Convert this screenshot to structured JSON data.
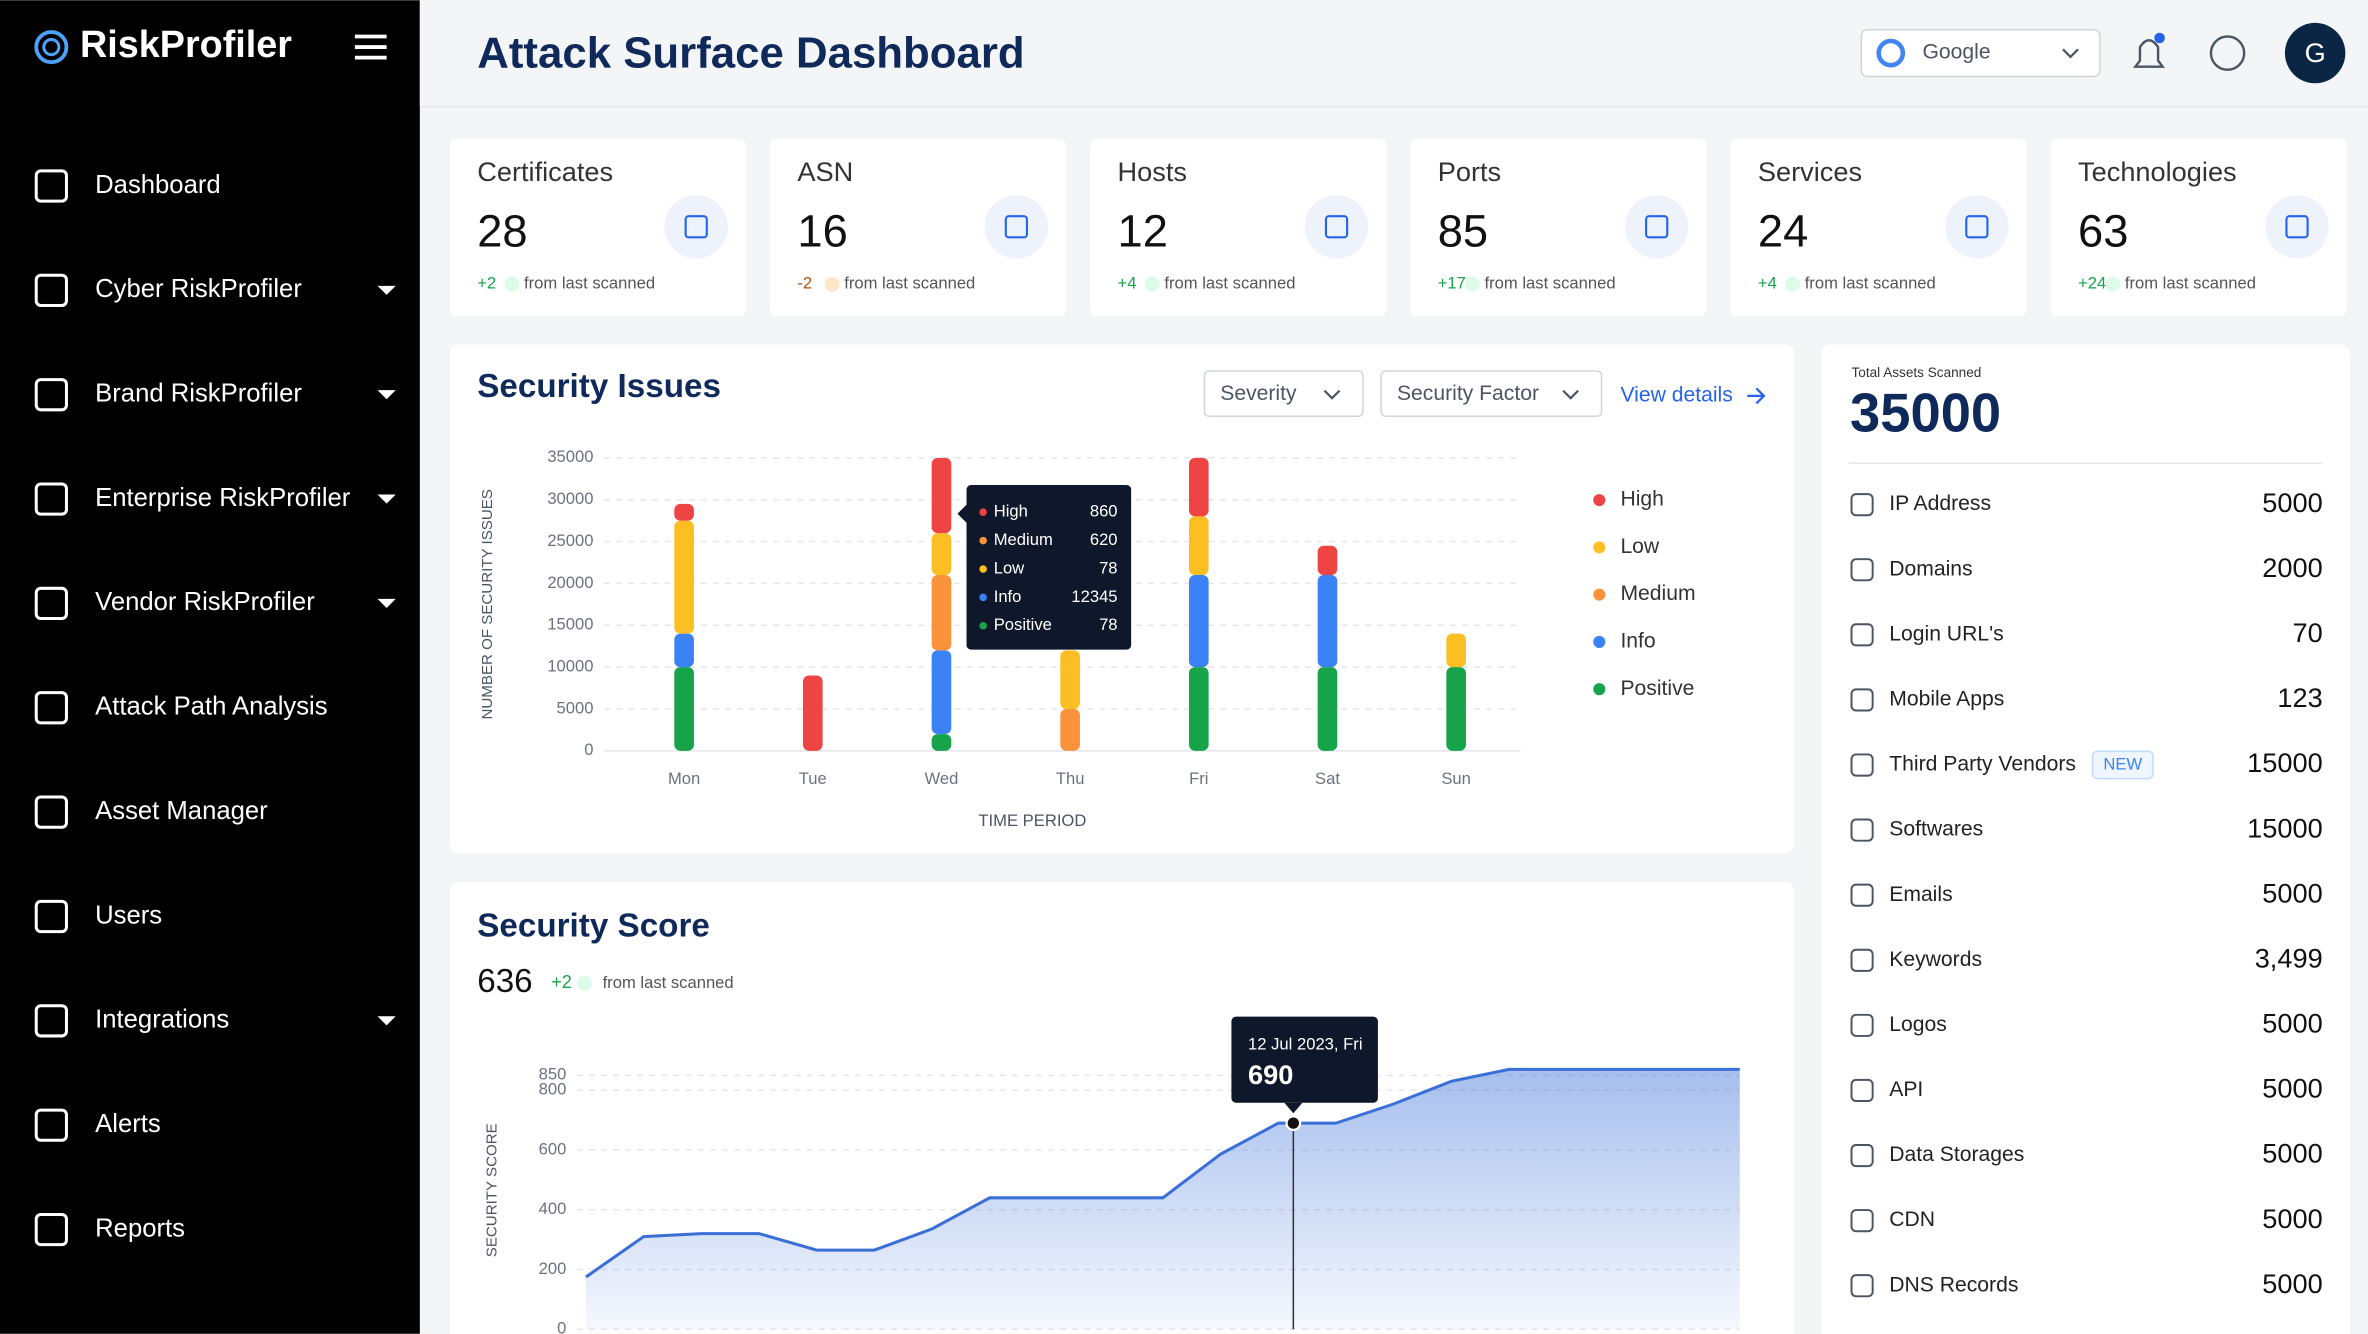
{
  "sidebar": {
    "brand": "RiskProfiler",
    "nav": [
      {
        "label": "Dashboard",
        "has_submenu": false
      },
      {
        "label": "Cyber RiskProfiler",
        "has_submenu": true
      },
      {
        "label": "Brand RiskProfiler",
        "has_submenu": true
      },
      {
        "label": "Enterprise RiskProfiler",
        "has_submenu": true
      },
      {
        "label": "Vendor RiskProfiler",
        "has_submenu": true
      },
      {
        "label": "Attack Path Analysis",
        "has_submenu": false
      },
      {
        "label": "Asset Manager",
        "has_submenu": false
      },
      {
        "label": "Users",
        "has_submenu": false
      },
      {
        "label": "Integrations",
        "has_submenu": true
      },
      {
        "label": "Alerts",
        "has_submenu": false
      },
      {
        "label": "Reports",
        "has_submenu": false
      }
    ]
  },
  "header": {
    "title": "Attack Surface Dashboard",
    "organization": "Google",
    "avatar": "G"
  },
  "stat_cards": [
    {
      "title": "Certificates",
      "value": 28,
      "change": "+2",
      "note": "from last scanned"
    },
    {
      "title": "ASN",
      "value": 16,
      "change": "-2",
      "note": "from last scanned"
    },
    {
      "title": "Hosts",
      "value": 12,
      "change": "+4",
      "note": "from last scanned"
    },
    {
      "title": "Ports",
      "value": 85,
      "change": "+17",
      "note": "from last scanned"
    },
    {
      "title": "Services",
      "value": 24,
      "change": "+4",
      "note": "from last scanned"
    },
    {
      "title": "Technologies",
      "value": 63,
      "change": "+24",
      "note": "from last scanned"
    }
  ],
  "security_issues": {
    "title": "Security Issues",
    "filters": [
      "Severity",
      "Security Factor"
    ],
    "link": "View details",
    "chart_data": {
      "type": "stacked_bar",
      "y_label": "NUMBER OF SECURITY ISSUES",
      "x_label": "TIME PERIOD",
      "categories": [
        "Mon",
        "Tue",
        "Wed",
        "Thu",
        "Fri",
        "Sat",
        "Sun"
      ],
      "series": [
        {
          "name": "High",
          "color": "#ef4444",
          "values": [
            2000,
            9000,
            9000,
            0,
            7000,
            3500,
            0
          ]
        },
        {
          "name": "Low",
          "color": "#fbbf24",
          "values": [
            13500,
            0,
            5000,
            7000,
            7000,
            0,
            4000
          ]
        },
        {
          "name": "Medium",
          "color": "#fb923c",
          "values": [
            0,
            0,
            9000,
            5000,
            0,
            0,
            0
          ]
        },
        {
          "name": "Info",
          "color": "#3b82f6",
          "values": [
            4000,
            0,
            10000,
            0,
            11000,
            11000,
            0
          ]
        },
        {
          "name": "Positive",
          "color": "#16a34a",
          "values": [
            10000,
            0,
            2000,
            0,
            10000,
            10000,
            10000
          ]
        }
      ],
      "ylim": [
        0,
        35000
      ],
      "yticks": [
        0,
        5000,
        10000,
        15000,
        20000,
        25000,
        30000,
        35000
      ],
      "grid": true,
      "legend": "right"
    },
    "tooltip": {
      "rows": [
        {
          "name": "High",
          "value": 860
        },
        {
          "name": "Medium",
          "value": 620
        },
        {
          "name": "Low",
          "value": 78
        },
        {
          "name": "Info",
          "value": 12345
        },
        {
          "name": "Positive",
          "value": 78
        }
      ]
    }
  },
  "security_score": {
    "title": "Security Score",
    "score": 636,
    "change": "+2",
    "note": "from last scanned",
    "chart_data": {
      "type": "area",
      "y_label": "SECURITY SCORE",
      "values": [
        175,
        310,
        320,
        320,
        265,
        265,
        336,
        440,
        440,
        440,
        440,
        586,
        690,
        690,
        754,
        830,
        870,
        870,
        870,
        870,
        870
      ],
      "ylim": [
        0,
        900
      ],
      "yticks": [
        0,
        200,
        400,
        600,
        800,
        850
      ],
      "color": "#3b6fd8",
      "grid": true
    },
    "tooltip": {
      "date": "12 Jul 2023, Fri",
      "value": 690
    }
  },
  "assets": {
    "title": "Total Assets Scanned",
    "total": 35000,
    "items": [
      {
        "name": "IP Address",
        "value": 5000
      },
      {
        "name": "Domains",
        "value": 2000
      },
      {
        "name": "Login URL's",
        "value": 70
      },
      {
        "name": "Mobile Apps",
        "value": 123
      },
      {
        "name": "Third Party Vendors",
        "badge": "NEW",
        "value": 15000
      },
      {
        "name": "Softwares",
        "value": 15000
      },
      {
        "name": "Emails",
        "value": 5000
      },
      {
        "name": "Keywords",
        "value": "3,499"
      },
      {
        "name": "Logos",
        "value": 5000
      },
      {
        "name": "API",
        "value": 5000
      },
      {
        "name": "Data Storages",
        "value": 5000
      },
      {
        "name": "CDN",
        "value": 5000
      },
      {
        "name": "DNS Records",
        "value": 5000
      }
    ]
  }
}
